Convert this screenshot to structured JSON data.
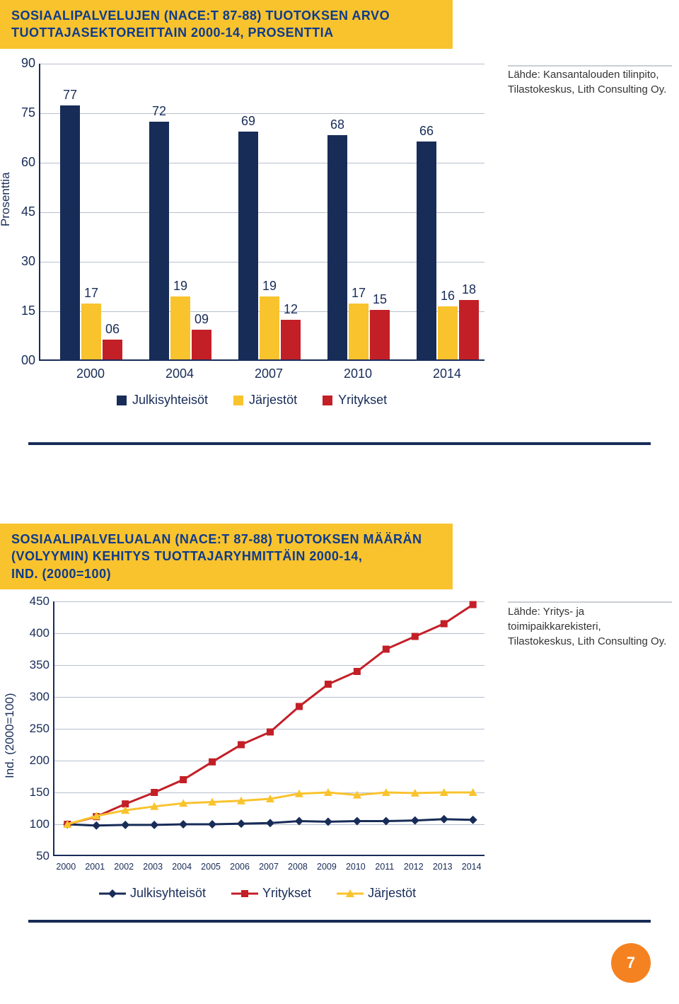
{
  "page_number": "7",
  "header1_line1": "SOSIAALIPALVELUJEN (NACE:T 87-88) TUOTOKSEN ARVO",
  "header1_line2": "TUOTTAJASEKTOREITTAIN 2000-14, PROSENTTIA",
  "header2_line1": "SOSIAALIPALVELUALAN (NACE:T 87-88) TUOTOKSEN MÄÄRÄN",
  "header2_line2": "(VOLYYMIN) KEHITYS TUOTTAJARYHMITTÄIN 2000-14,",
  "header2_line3": "IND. (2000=100)",
  "source1": "Lähde: Kansantalouden tilinpito, Tilastokeskus, Lith Consulting Oy.",
  "source2": "Lähde: Yritys- ja toimipaikkarekisteri, Tilastokeskus, Lith Consulting Oy.",
  "chart1": {
    "type": "bar",
    "ylabel": "Prosenttia",
    "ymin": 0,
    "ymax": 90,
    "ystep": 15,
    "yticks": [
      "00",
      "15",
      "30",
      "45",
      "60",
      "75",
      "90"
    ],
    "categories": [
      "2000",
      "2004",
      "2007",
      "2010",
      "2014"
    ],
    "series": {
      "julkisyhteisot": {
        "label": "Julkisyhteisöt",
        "color": "#182c58",
        "values": [
          77,
          72,
          69,
          68,
          66
        ]
      },
      "jarjestot": {
        "label": "Järjestöt",
        "color": "#f9c32e",
        "values": [
          17,
          19,
          19,
          17,
          16
        ]
      },
      "yritykset": {
        "label": "Yritykset",
        "color": "#c31f27",
        "values": [
          6,
          9,
          12,
          15,
          18
        ]
      }
    },
    "value_label_overrides": {
      "yritykset_0": "06",
      "yritykset_1": "09"
    }
  },
  "chart2": {
    "type": "line",
    "ylabel": "Ind. (2000=100)",
    "ymin": 50,
    "ymax": 450,
    "ystep": 50,
    "yticks": [
      "50",
      "100",
      "150",
      "200",
      "250",
      "300",
      "350",
      "400",
      "450"
    ],
    "categories": [
      "2000",
      "2001",
      "2002",
      "2003",
      "2004",
      "2005",
      "2006",
      "2007",
      "2008",
      "2009",
      "2010",
      "2011",
      "2012",
      "2013",
      "2014"
    ],
    "series": {
      "julkisyhteisot": {
        "label": "Julkisyhteisöt",
        "color": "#182c58",
        "marker": "diamond",
        "values": [
          100,
          98,
          99,
          99,
          100,
          100,
          101,
          102,
          105,
          104,
          105,
          105,
          106,
          108,
          107
        ]
      },
      "yritykset": {
        "label": "Yritykset",
        "color": "#c31f27",
        "marker": "square",
        "values": [
          100,
          112,
          132,
          150,
          170,
          198,
          225,
          245,
          285,
          320,
          340,
          375,
          395,
          415,
          445
        ]
      },
      "jarjestot": {
        "label": "Järjestöt",
        "color": "#f9c32e",
        "marker": "triangle",
        "values": [
          100,
          113,
          122,
          128,
          133,
          135,
          137,
          140,
          148,
          150,
          146,
          150,
          149,
          150,
          150
        ]
      }
    },
    "legend_order": [
      "julkisyhteisot",
      "yritykset",
      "jarjestot"
    ]
  },
  "colors": {
    "navy": "#182c58",
    "blue_title": "#0e3b8c",
    "amber": "#f9c32e",
    "red": "#c31f27",
    "orange": "#f58220",
    "grid": "#b7bfcf"
  }
}
